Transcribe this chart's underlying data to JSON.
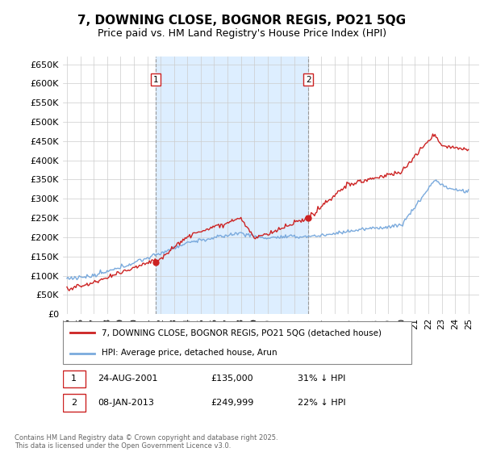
{
  "title": "7, DOWNING CLOSE, BOGNOR REGIS, PO21 5QG",
  "subtitle": "Price paid vs. HM Land Registry's House Price Index (HPI)",
  "ylim": [
    0,
    670000
  ],
  "yticks": [
    0,
    50000,
    100000,
    150000,
    200000,
    250000,
    300000,
    350000,
    400000,
    450000,
    500000,
    550000,
    600000,
    650000
  ],
  "ytick_labels": [
    "£0",
    "£50K",
    "£100K",
    "£150K",
    "£200K",
    "£250K",
    "£300K",
    "£350K",
    "£400K",
    "£450K",
    "£500K",
    "£550K",
    "£600K",
    "£650K"
  ],
  "hpi_color": "#7aaadd",
  "price_color": "#cc2222",
  "shade_color": "#ddeeff",
  "sale1_date": 2001.65,
  "sale1_price": 135000,
  "sale1_label": "1",
  "sale2_date": 2013.03,
  "sale2_price": 249999,
  "sale2_label": "2",
  "legend_line1": "7, DOWNING CLOSE, BOGNOR REGIS, PO21 5QG (detached house)",
  "legend_line2": "HPI: Average price, detached house, Arun",
  "annotation1_date": "24-AUG-2001",
  "annotation1_price": "£135,000",
  "annotation1_hpi": "31% ↓ HPI",
  "annotation2_date": "08-JAN-2013",
  "annotation2_price": "£249,999",
  "annotation2_hpi": "22% ↓ HPI",
  "footer": "Contains HM Land Registry data © Crown copyright and database right 2025.\nThis data is licensed under the Open Government Licence v3.0.",
  "background_color": "#ffffff",
  "grid_color": "#cccccc",
  "title_fontsize": 11,
  "subtitle_fontsize": 9,
  "tick_fontsize": 8,
  "xlim_left": 1994.7,
  "xlim_right": 2025.8
}
